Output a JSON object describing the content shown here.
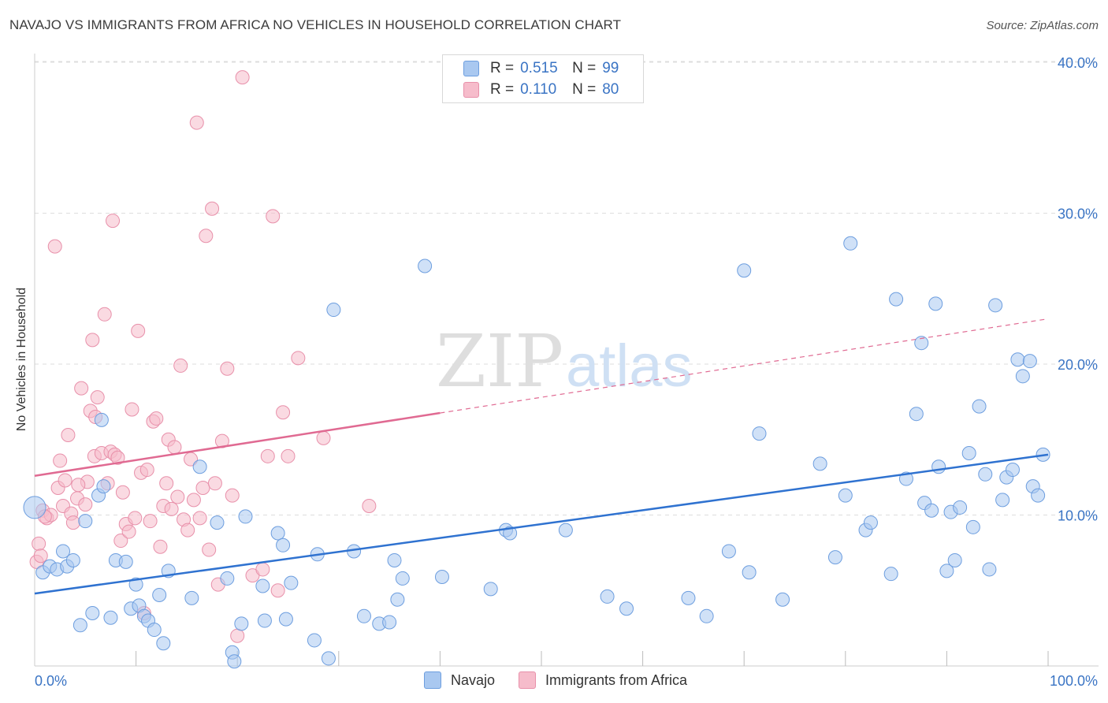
{
  "header": {
    "title": "NAVAJO VS IMMIGRANTS FROM AFRICA NO VEHICLES IN HOUSEHOLD CORRELATION CHART",
    "source": "Source: ZipAtlas.com"
  },
  "watermark": {
    "zip": "ZIP",
    "atlas": "atlas"
  },
  "legend": {
    "r_label": "R =",
    "n_label": "N =",
    "rows": [
      {
        "r": "0.515",
        "n": "99",
        "color": "#a9c8f0"
      },
      {
        "r": "0.110",
        "n": "80",
        "color": "#f6bccb"
      }
    ]
  },
  "bottom_legend": [
    "Navajo",
    "Immigrants from Africa"
  ],
  "colors": {
    "navajo_fill": "#a9c8f0",
    "navajo_stroke": "#6d9edf",
    "navajo_line": "#2f72d0",
    "africa_fill": "#f6bccb",
    "africa_stroke": "#e890aa",
    "africa_line": "#e06a92",
    "tick_label": "#3a74c4",
    "grid": "#dddddd"
  },
  "chart_data": {
    "type": "scatter",
    "title": "NAVAJO VS IMMIGRANTS FROM AFRICA NO VEHICLES IN HOUSEHOLD CORRELATION CHART",
    "xlabel": "",
    "ylabel": "No Vehicles in Household",
    "xlim": [
      0,
      100
    ],
    "ylim": [
      0,
      42
    ],
    "x_tick_labels": [
      "0.0%",
      "100.0%"
    ],
    "y_ticks": [
      10,
      20,
      30,
      40
    ],
    "y_tick_labels": [
      "10.0%",
      "20.0%",
      "30.0%",
      "40.0%"
    ],
    "grid": true,
    "legend_placement": "top-center",
    "series": [
      {
        "name": "Navajo",
        "r": 0.515,
        "n": 99,
        "trend": {
          "x": [
            0,
            100
          ],
          "y": [
            4.8,
            14.0
          ],
          "dashed_from": null
        },
        "points": [
          [
            0,
            10.5
          ],
          [
            0.8,
            6.2
          ],
          [
            1.5,
            6.6
          ],
          [
            2.2,
            6.4
          ],
          [
            2.8,
            7.6
          ],
          [
            3.2,
            6.6
          ],
          [
            3.8,
            7.0
          ],
          [
            4.5,
            2.7
          ],
          [
            5.0,
            9.6
          ],
          [
            5.7,
            3.5
          ],
          [
            6.3,
            11.3
          ],
          [
            6.6,
            16.3
          ],
          [
            6.8,
            11.9
          ],
          [
            7.5,
            3.2
          ],
          [
            8.0,
            7.0
          ],
          [
            9.0,
            6.9
          ],
          [
            9.5,
            3.8
          ],
          [
            10.0,
            5.4
          ],
          [
            10.3,
            4.0
          ],
          [
            10.8,
            3.3
          ],
          [
            11.2,
            3.0
          ],
          [
            11.8,
            2.4
          ],
          [
            12.3,
            4.7
          ],
          [
            12.7,
            1.5
          ],
          [
            13.2,
            6.3
          ],
          [
            15.5,
            4.5
          ],
          [
            16.3,
            13.2
          ],
          [
            18.0,
            9.5
          ],
          [
            19.0,
            5.8
          ],
          [
            19.5,
            0.9
          ],
          [
            19.7,
            0.3
          ],
          [
            20.4,
            2.8
          ],
          [
            20.8,
            9.9
          ],
          [
            22.7,
            3.0
          ],
          [
            22.5,
            5.3
          ],
          [
            24.0,
            8.8
          ],
          [
            24.5,
            8.0
          ],
          [
            24.8,
            3.1
          ],
          [
            25.3,
            5.5
          ],
          [
            27.6,
            1.7
          ],
          [
            27.9,
            7.4
          ],
          [
            29.0,
            0.5
          ],
          [
            29.5,
            23.6
          ],
          [
            31.5,
            7.6
          ],
          [
            32.5,
            3.3
          ],
          [
            34.0,
            2.8
          ],
          [
            35.0,
            2.9
          ],
          [
            35.5,
            7.0
          ],
          [
            35.8,
            4.4
          ],
          [
            36.3,
            5.8
          ],
          [
            38.5,
            26.5
          ],
          [
            40.2,
            5.9
          ],
          [
            45.0,
            5.1
          ],
          [
            46.5,
            9.0
          ],
          [
            46.9,
            8.8
          ],
          [
            52.4,
            9.0
          ],
          [
            56.5,
            4.6
          ],
          [
            58.4,
            3.8
          ],
          [
            64.5,
            4.5
          ],
          [
            66.3,
            3.3
          ],
          [
            68.5,
            7.6
          ],
          [
            70.0,
            26.2
          ],
          [
            70.5,
            6.2
          ],
          [
            71.5,
            15.4
          ],
          [
            73.8,
            4.4
          ],
          [
            77.5,
            13.4
          ],
          [
            79.0,
            7.2
          ],
          [
            80.0,
            11.3
          ],
          [
            80.5,
            28.0
          ],
          [
            82.0,
            9.0
          ],
          [
            82.5,
            9.5
          ],
          [
            84.5,
            6.1
          ],
          [
            85.0,
            24.3
          ],
          [
            86.0,
            12.4
          ],
          [
            87.0,
            16.7
          ],
          [
            87.5,
            21.4
          ],
          [
            87.8,
            10.8
          ],
          [
            88.5,
            10.3
          ],
          [
            88.9,
            24.0
          ],
          [
            89.2,
            13.2
          ],
          [
            90.0,
            6.3
          ],
          [
            90.4,
            10.2
          ],
          [
            90.8,
            7.0
          ],
          [
            91.3,
            10.5
          ],
          [
            92.2,
            14.1
          ],
          [
            92.6,
            9.2
          ],
          [
            93.2,
            17.2
          ],
          [
            93.8,
            12.7
          ],
          [
            94.2,
            6.4
          ],
          [
            94.8,
            23.9
          ],
          [
            95.5,
            11.0
          ],
          [
            95.9,
            12.5
          ],
          [
            96.5,
            13.0
          ],
          [
            97.0,
            20.3
          ],
          [
            97.5,
            19.2
          ],
          [
            98.2,
            20.2
          ],
          [
            98.5,
            11.9
          ],
          [
            99.0,
            11.3
          ],
          [
            99.5,
            14.0
          ]
        ]
      },
      {
        "name": "Immigrants from Africa",
        "r": 0.11,
        "n": 80,
        "trend": {
          "x": [
            0,
            100
          ],
          "y": [
            12.6,
            23.0
          ],
          "dashed_from": 40
        },
        "points": [
          [
            0.2,
            6.9
          ],
          [
            0.4,
            8.1
          ],
          [
            0.6,
            7.3
          ],
          [
            0.8,
            10.3
          ],
          [
            1.2,
            9.8
          ],
          [
            1.6,
            10.0
          ],
          [
            2.0,
            27.8
          ],
          [
            2.3,
            11.8
          ],
          [
            2.5,
            13.6
          ],
          [
            2.8,
            10.6
          ],
          [
            3.0,
            12.3
          ],
          [
            3.3,
            15.3
          ],
          [
            3.6,
            10.1
          ],
          [
            3.8,
            9.5
          ],
          [
            4.2,
            11.1
          ],
          [
            4.6,
            18.4
          ],
          [
            5.0,
            10.7
          ],
          [
            5.2,
            12.2
          ],
          [
            5.5,
            16.9
          ],
          [
            5.7,
            21.6
          ],
          [
            5.9,
            13.9
          ],
          [
            6.2,
            17.8
          ],
          [
            6.6,
            14.1
          ],
          [
            6.9,
            23.3
          ],
          [
            7.2,
            12.1
          ],
          [
            7.5,
            14.2
          ],
          [
            7.7,
            29.5
          ],
          [
            7.9,
            14.0
          ],
          [
            8.2,
            13.8
          ],
          [
            8.5,
            8.3
          ],
          [
            8.7,
            11.5
          ],
          [
            9.0,
            9.4
          ],
          [
            9.3,
            8.9
          ],
          [
            9.6,
            17.0
          ],
          [
            9.9,
            9.8
          ],
          [
            10.2,
            22.2
          ],
          [
            10.5,
            12.8
          ],
          [
            10.8,
            3.5
          ],
          [
            11.1,
            13.0
          ],
          [
            11.4,
            9.6
          ],
          [
            11.7,
            16.2
          ],
          [
            12.0,
            16.4
          ],
          [
            12.4,
            7.9
          ],
          [
            12.7,
            10.6
          ],
          [
            13.0,
            12.1
          ],
          [
            13.2,
            15.0
          ],
          [
            13.5,
            10.4
          ],
          [
            13.8,
            14.5
          ],
          [
            14.1,
            11.2
          ],
          [
            14.4,
            19.9
          ],
          [
            14.7,
            9.7
          ],
          [
            15.1,
            9.0
          ],
          [
            15.4,
            13.7
          ],
          [
            15.7,
            11.0
          ],
          [
            16.0,
            36.0
          ],
          [
            16.3,
            9.8
          ],
          [
            16.6,
            11.8
          ],
          [
            16.9,
            28.5
          ],
          [
            17.2,
            7.7
          ],
          [
            17.5,
            30.3
          ],
          [
            17.8,
            12.1
          ],
          [
            18.1,
            5.4
          ],
          [
            18.5,
            14.9
          ],
          [
            19.0,
            19.7
          ],
          [
            19.5,
            11.3
          ],
          [
            20.0,
            2.0
          ],
          [
            20.5,
            39.0
          ],
          [
            21.5,
            6.0
          ],
          [
            22.5,
            6.4
          ],
          [
            23.0,
            13.9
          ],
          [
            23.5,
            29.8
          ],
          [
            24.0,
            5.0
          ],
          [
            24.5,
            16.8
          ],
          [
            25.0,
            13.9
          ],
          [
            26.0,
            20.4
          ],
          [
            28.5,
            15.1
          ],
          [
            33.0,
            10.6
          ],
          [
            4.3,
            12.0
          ],
          [
            1.0,
            9.9
          ],
          [
            6.0,
            16.5
          ]
        ]
      }
    ]
  }
}
